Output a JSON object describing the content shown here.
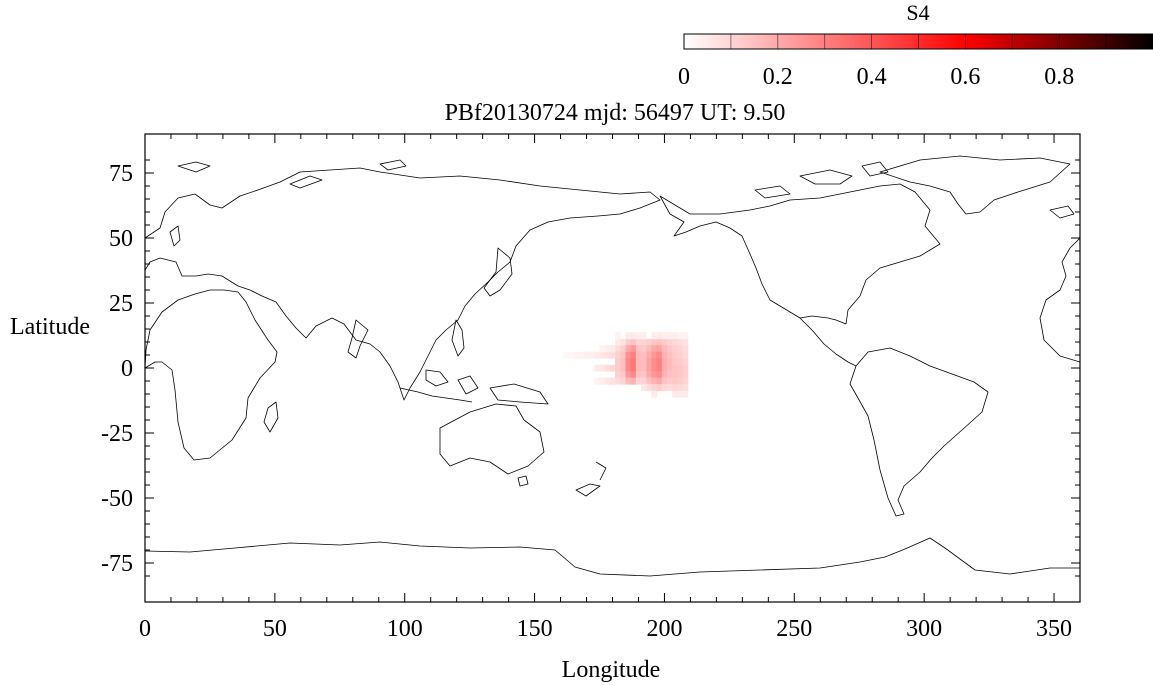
{
  "title": "PBf20130724  mjd: 56497  UT:   9.50",
  "colorbar": {
    "label": "S4",
    "ticks": [
      "0",
      "0.2",
      "0.4",
      "0.6",
      "0.8"
    ],
    "tick_values": [
      0,
      0.2,
      0.4,
      0.6,
      0.8
    ],
    "range": [
      0,
      1
    ],
    "colors": [
      "#ffffff",
      "#ff0000",
      "#000000"
    ]
  },
  "chart_data": {
    "type": "heatmap",
    "title": "PBf20130724  mjd: 56497  UT:   9.50",
    "xlabel": "Longitude",
    "ylabel": "Latitude",
    "xlim": [
      0,
      360
    ],
    "ylim": [
      -90,
      90
    ],
    "x_ticks": [
      0,
      50,
      100,
      150,
      200,
      250,
      300,
      350
    ],
    "y_ticks": [
      75,
      50,
      25,
      0,
      -25,
      -50,
      -75
    ],
    "x_tick_labels": [
      "0",
      "50",
      "100",
      "150",
      "200",
      "250",
      "300",
      "350"
    ],
    "y_tick_labels": [
      "75",
      "50",
      "25",
      "0",
      "-25",
      "-50",
      "-75"
    ],
    "cell_size_deg": [
      2,
      2.5
    ],
    "cells": [
      {
        "lon": 162,
        "lat": 5,
        "s4": 0.02
      },
      {
        "lon": 164,
        "lat": 5,
        "s4": 0.02
      },
      {
        "lon": 166,
        "lat": 5,
        "s4": 0.03
      },
      {
        "lon": 168,
        "lat": 5,
        "s4": 0.03
      },
      {
        "lon": 170,
        "lat": 5,
        "s4": 0.04
      },
      {
        "lon": 172,
        "lat": 5,
        "s4": 0.04
      },
      {
        "lon": 174,
        "lat": 5,
        "s4": 0.05
      },
      {
        "lon": 176,
        "lat": 5,
        "s4": 0.06
      },
      {
        "lon": 174,
        "lat": 0,
        "s4": 0.05
      },
      {
        "lon": 176,
        "lat": 0,
        "s4": 0.06
      },
      {
        "lon": 178,
        "lat": 0,
        "s4": 0.08
      },
      {
        "lon": 180,
        "lat": 0,
        "s4": 0.09
      },
      {
        "lon": 178,
        "lat": 5,
        "s4": 0.07
      },
      {
        "lon": 180,
        "lat": 5,
        "s4": 0.08
      },
      {
        "lon": 178,
        "lat": -5,
        "s4": 0.06
      },
      {
        "lon": 180,
        "lat": -5,
        "s4": 0.07
      },
      {
        "lon": 182,
        "lat": 7.5,
        "s4": 0.09
      },
      {
        "lon": 184,
        "lat": 7.5,
        "s4": 0.12
      },
      {
        "lon": 182,
        "lat": 5,
        "s4": 0.11
      },
      {
        "lon": 184,
        "lat": 5,
        "s4": 0.14
      },
      {
        "lon": 182,
        "lat": 2.5,
        "s4": 0.12
      },
      {
        "lon": 184,
        "lat": 2.5,
        "s4": 0.15
      },
      {
        "lon": 182,
        "lat": 0,
        "s4": 0.12
      },
      {
        "lon": 184,
        "lat": 0,
        "s4": 0.15
      },
      {
        "lon": 182,
        "lat": -2.5,
        "s4": 0.11
      },
      {
        "lon": 184,
        "lat": -2.5,
        "s4": 0.13
      },
      {
        "lon": 182,
        "lat": -5,
        "s4": 0.08
      },
      {
        "lon": 184,
        "lat": -5,
        "s4": 0.1
      },
      {
        "lon": 186,
        "lat": 10,
        "s4": 0.12
      },
      {
        "lon": 188,
        "lat": 10,
        "s4": 0.14
      },
      {
        "lon": 186,
        "lat": 7.5,
        "s4": 0.2
      },
      {
        "lon": 188,
        "lat": 7.5,
        "s4": 0.24
      },
      {
        "lon": 186,
        "lat": 5,
        "s4": 0.26
      },
      {
        "lon": 188,
        "lat": 5,
        "s4": 0.3
      },
      {
        "lon": 186,
        "lat": 2.5,
        "s4": 0.28
      },
      {
        "lon": 188,
        "lat": 2.5,
        "s4": 0.32
      },
      {
        "lon": 186,
        "lat": 0,
        "s4": 0.28
      },
      {
        "lon": 188,
        "lat": 0,
        "s4": 0.32
      },
      {
        "lon": 186,
        "lat": -2.5,
        "s4": 0.24
      },
      {
        "lon": 188,
        "lat": -2.5,
        "s4": 0.28
      },
      {
        "lon": 186,
        "lat": -5,
        "s4": 0.16
      },
      {
        "lon": 188,
        "lat": -5,
        "s4": 0.18
      },
      {
        "lon": 190,
        "lat": 10,
        "s4": 0.1
      },
      {
        "lon": 192,
        "lat": 10,
        "s4": 0.1
      },
      {
        "lon": 190,
        "lat": 7.5,
        "s4": 0.14
      },
      {
        "lon": 192,
        "lat": 7.5,
        "s4": 0.13
      },
      {
        "lon": 190,
        "lat": 5,
        "s4": 0.16
      },
      {
        "lon": 192,
        "lat": 5,
        "s4": 0.15
      },
      {
        "lon": 190,
        "lat": 2.5,
        "s4": 0.16
      },
      {
        "lon": 192,
        "lat": 2.5,
        "s4": 0.15
      },
      {
        "lon": 190,
        "lat": 0,
        "s4": 0.16
      },
      {
        "lon": 192,
        "lat": 0,
        "s4": 0.15
      },
      {
        "lon": 190,
        "lat": -2.5,
        "s4": 0.14
      },
      {
        "lon": 192,
        "lat": -2.5,
        "s4": 0.13
      },
      {
        "lon": 190,
        "lat": -5,
        "s4": 0.1
      },
      {
        "lon": 192,
        "lat": -5,
        "s4": 0.1
      },
      {
        "lon": 194,
        "lat": 10,
        "s4": 0.11
      },
      {
        "lon": 194,
        "lat": 7.5,
        "s4": 0.16
      },
      {
        "lon": 194,
        "lat": 5,
        "s4": 0.2
      },
      {
        "lon": 194,
        "lat": 2.5,
        "s4": 0.22
      },
      {
        "lon": 194,
        "lat": 0,
        "s4": 0.22
      },
      {
        "lon": 194,
        "lat": -2.5,
        "s4": 0.2
      },
      {
        "lon": 194,
        "lat": -5,
        "s4": 0.15
      },
      {
        "lon": 194,
        "lat": -7.5,
        "s4": 0.08
      },
      {
        "lon": 196,
        "lat": 10,
        "s4": 0.13
      },
      {
        "lon": 198,
        "lat": 10,
        "s4": 0.14
      },
      {
        "lon": 196,
        "lat": 7.5,
        "s4": 0.2
      },
      {
        "lon": 198,
        "lat": 7.5,
        "s4": 0.22
      },
      {
        "lon": 196,
        "lat": 5,
        "s4": 0.25
      },
      {
        "lon": 198,
        "lat": 5,
        "s4": 0.28
      },
      {
        "lon": 196,
        "lat": 2.5,
        "s4": 0.27
      },
      {
        "lon": 198,
        "lat": 2.5,
        "s4": 0.3
      },
      {
        "lon": 196,
        "lat": 0,
        "s4": 0.27
      },
      {
        "lon": 198,
        "lat": 0,
        "s4": 0.3
      },
      {
        "lon": 196,
        "lat": -2.5,
        "s4": 0.25
      },
      {
        "lon": 198,
        "lat": -2.5,
        "s4": 0.27
      },
      {
        "lon": 196,
        "lat": -5,
        "s4": 0.18
      },
      {
        "lon": 198,
        "lat": -5,
        "s4": 0.2
      },
      {
        "lon": 196,
        "lat": -7.5,
        "s4": 0.1
      },
      {
        "lon": 198,
        "lat": -7.5,
        "s4": 0.12
      },
      {
        "lon": 200,
        "lat": 10,
        "s4": 0.12
      },
      {
        "lon": 202,
        "lat": 10,
        "s4": 0.1
      },
      {
        "lon": 200,
        "lat": 7.5,
        "s4": 0.16
      },
      {
        "lon": 202,
        "lat": 7.5,
        "s4": 0.13
      },
      {
        "lon": 200,
        "lat": 5,
        "s4": 0.18
      },
      {
        "lon": 202,
        "lat": 5,
        "s4": 0.15
      },
      {
        "lon": 200,
        "lat": 2.5,
        "s4": 0.19
      },
      {
        "lon": 202,
        "lat": 2.5,
        "s4": 0.16
      },
      {
        "lon": 200,
        "lat": 0,
        "s4": 0.19
      },
      {
        "lon": 202,
        "lat": 0,
        "s4": 0.16
      },
      {
        "lon": 200,
        "lat": -2.5,
        "s4": 0.18
      },
      {
        "lon": 202,
        "lat": -2.5,
        "s4": 0.15
      },
      {
        "lon": 200,
        "lat": -5,
        "s4": 0.14
      },
      {
        "lon": 202,
        "lat": -5,
        "s4": 0.12
      },
      {
        "lon": 200,
        "lat": -7.5,
        "s4": 0.09
      },
      {
        "lon": 202,
        "lat": -7.5,
        "s4": 0.08
      },
      {
        "lon": 204,
        "lat": 10,
        "s4": 0.09
      },
      {
        "lon": 206,
        "lat": 10,
        "s4": 0.08
      },
      {
        "lon": 204,
        "lat": 7.5,
        "s4": 0.11
      },
      {
        "lon": 206,
        "lat": 7.5,
        "s4": 0.1
      },
      {
        "lon": 204,
        "lat": 5,
        "s4": 0.12
      },
      {
        "lon": 206,
        "lat": 5,
        "s4": 0.11
      },
      {
        "lon": 204,
        "lat": 2.5,
        "s4": 0.13
      },
      {
        "lon": 206,
        "lat": 2.5,
        "s4": 0.12
      },
      {
        "lon": 204,
        "lat": 0,
        "s4": 0.14
      },
      {
        "lon": 206,
        "lat": 0,
        "s4": 0.13
      },
      {
        "lon": 204,
        "lat": -2.5,
        "s4": 0.14
      },
      {
        "lon": 206,
        "lat": -2.5,
        "s4": 0.13
      },
      {
        "lon": 204,
        "lat": -5,
        "s4": 0.13
      },
      {
        "lon": 206,
        "lat": -5,
        "s4": 0.12
      },
      {
        "lon": 204,
        "lat": -7.5,
        "s4": 0.1
      },
      {
        "lon": 206,
        "lat": -7.5,
        "s4": 0.09
      },
      {
        "lon": 208,
        "lat": 10,
        "s4": 0.07
      },
      {
        "lon": 208,
        "lat": 7.5,
        "s4": 0.08
      },
      {
        "lon": 208,
        "lat": 5,
        "s4": 0.09
      },
      {
        "lon": 208,
        "lat": 2.5,
        "s4": 0.1
      },
      {
        "lon": 208,
        "lat": 0,
        "s4": 0.11
      },
      {
        "lon": 208,
        "lat": -2.5,
        "s4": 0.11
      },
      {
        "lon": 208,
        "lat": -5,
        "s4": 0.1
      },
      {
        "lon": 208,
        "lat": -7.5,
        "s4": 0.08
      },
      {
        "lon": 204,
        "lat": -10,
        "s4": 0.05
      },
      {
        "lon": 206,
        "lat": -10,
        "s4": 0.05
      },
      {
        "lon": 208,
        "lat": -10,
        "s4": 0.05
      },
      {
        "lon": 196,
        "lat": -10,
        "s4": 0.05
      },
      {
        "lon": 192,
        "lat": -7.5,
        "s4": 0.06
      },
      {
        "lon": 176,
        "lat": 7.5,
        "s4": 0.03
      },
      {
        "lon": 178,
        "lat": 7.5,
        "s4": 0.04
      },
      {
        "lon": 180,
        "lat": 7.5,
        "s4": 0.05
      },
      {
        "lon": 182,
        "lat": 10,
        "s4": 0.05
      },
      {
        "lon": 184,
        "lat": 10,
        "s4": 0.07
      },
      {
        "lon": 174,
        "lat": -5,
        "s4": 0.03
      },
      {
        "lon": 176,
        "lat": -5,
        "s4": 0.04
      },
      {
        "lon": 190,
        "lat": 12.5,
        "s4": 0.04
      },
      {
        "lon": 196,
        "lat": 12.5,
        "s4": 0.04
      },
      {
        "lon": 200,
        "lat": 12.5,
        "s4": 0.04
      },
      {
        "lon": 204,
        "lat": 12.5,
        "s4": 0.04
      },
      {
        "lon": 182,
        "lat": 12.5,
        "s4": 0.03
      },
      {
        "lon": 186,
        "lat": 12.5,
        "s4": 0.05
      },
      {
        "lon": 188,
        "lat": 12.5,
        "s4": 0.05
      },
      {
        "lon": 192,
        "lat": 12.5,
        "s4": 0.04
      },
      {
        "lon": 198,
        "lat": 12.5,
        "s4": 0.05
      },
      {
        "lon": 202,
        "lat": 12.5,
        "s4": 0.04
      },
      {
        "lon": 206,
        "lat": 12.5,
        "s4": 0.03
      },
      {
        "lon": 208,
        "lat": 12.5,
        "s4": 0.03
      }
    ]
  }
}
